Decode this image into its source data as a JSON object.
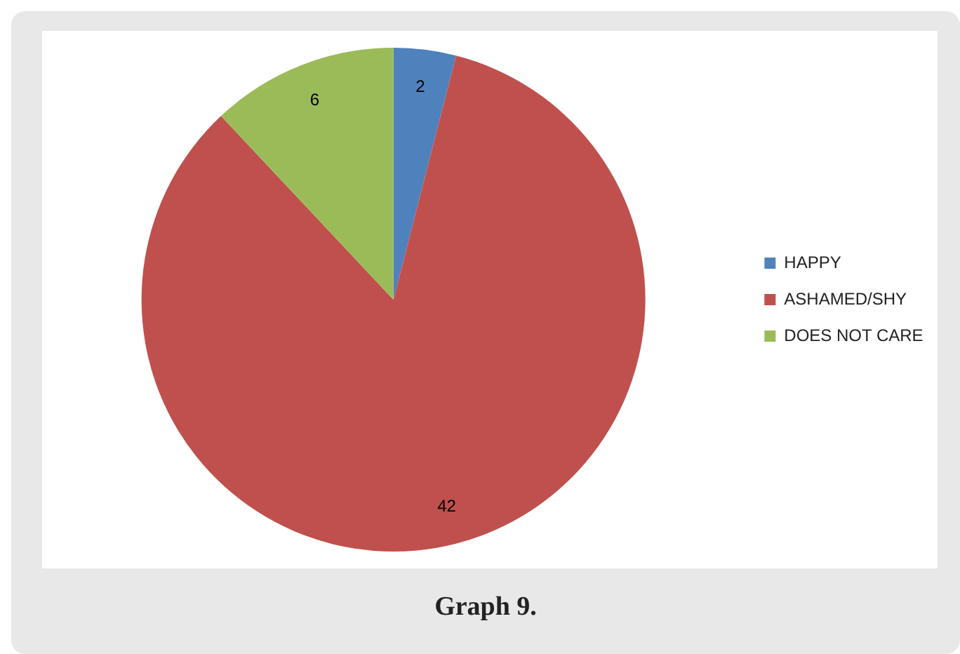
{
  "chart_data": {
    "type": "pie",
    "categories": [
      "HAPPY",
      "ASHAMED/SHY",
      "DOES NOT CARE"
    ],
    "values": [
      2,
      42,
      6
    ],
    "colors": [
      "#4f81bd",
      "#c0504d",
      "#9bbb59"
    ],
    "data_labels": true,
    "legend": "right",
    "annotations": [
      "Graph 9."
    ]
  }
}
